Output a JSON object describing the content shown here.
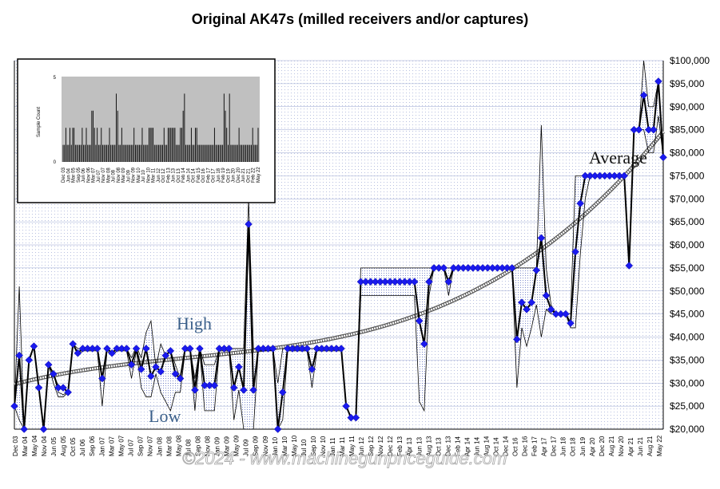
{
  "chart_data": {
    "type": "line",
    "title": "Original AK47s (milled receivers and/or captures)",
    "annotations": [
      "High",
      "Low",
      "Average"
    ],
    "watermark": "©2024 - www.machinegunpriceguide.com",
    "ylim": [
      20000,
      100000
    ],
    "y_ticks": [
      "$20,000",
      "$25,000",
      "$30,000",
      "$35,000",
      "$40,000",
      "$45,000",
      "$50,000",
      "$55,000",
      "$60,000",
      "$65,000",
      "$70,000",
      "$75,000",
      "$80,000",
      "$85,000",
      "$90,000",
      "$95,000",
      "$100,000"
    ],
    "x_ticks": [
      "Dec 03",
      "Mar 04",
      "May 04",
      "Nov 04",
      "Jun 05",
      "Aug 05",
      "Oct 05",
      "Jul 06",
      "Sep 06",
      "Jan 07",
      "Mar 07",
      "May 07",
      "Jul 07",
      "Sep 07",
      "Nov 07",
      "Jan 08",
      "Mar 08",
      "May 08",
      "Jul 08",
      "Sep 08",
      "Nov 08",
      "Jan 09",
      "Mar 09",
      "May 09",
      "Jul 09",
      "Sep 09",
      "Nov 09",
      "Jan 10",
      "Mar 10",
      "May 10",
      "Jul 10",
      "Sep 10",
      "Nov 10",
      "Jan 11",
      "Mar 11",
      "May 11",
      "Jun 12",
      "Sep 12",
      "Nov 12",
      "Dec 12",
      "Feb 13",
      "Apr 13",
      "Jun 13",
      "Aug 13",
      "Oct 13",
      "Dec 13",
      "Feb 14",
      "Apr 14",
      "Jun 14",
      "Aug 14",
      "Oct 14",
      "Dec 14",
      "Oct 16",
      "Dec 16",
      "Feb 17",
      "Apr 17",
      "Dec 17",
      "Jun 18",
      "Oct 18",
      "Jun 19",
      "Apr 20",
      "Dec 20",
      "Aug 21",
      "Nov 20",
      "Apr 21",
      "Jun 21",
      "Aug 21",
      "May 22"
    ],
    "series": [
      {
        "name": "Average",
        "values": [
          25000,
          36000,
          20000,
          35000,
          38000,
          29000,
          20000,
          34000,
          32000,
          29000,
          29000,
          28000,
          38500,
          36500,
          37500,
          37500,
          37500,
          37500,
          31000,
          37500,
          36500,
          37500,
          37500,
          37500,
          34000,
          37500,
          33000,
          37500,
          31500,
          33500,
          32500,
          36000,
          37000,
          32000,
          31000,
          37500,
          37500,
          28500,
          37500,
          29500,
          29500,
          29500,
          37500,
          37500,
          37500,
          29000,
          33500,
          28500,
          64500,
          28500,
          37500,
          37500,
          37500,
          37500,
          20000,
          28000,
          37500,
          37500,
          37500,
          37500,
          37500,
          33000,
          37500,
          37500,
          37500,
          37500,
          37500,
          37500,
          25000,
          22500,
          22500,
          52000,
          52000,
          52000,
          52000,
          52000,
          52000,
          52000,
          52000,
          52000,
          52000,
          52000,
          52000,
          43500,
          38500,
          52000,
          55000,
          55000,
          55000,
          52000,
          55000,
          55000,
          55000,
          55000,
          55000,
          55000,
          55000,
          55000,
          55000,
          55000,
          55000,
          55000,
          55000,
          39500,
          47500,
          46000,
          47500,
          54500,
          61500,
          49000,
          46000,
          45000,
          45000,
          45000,
          43000,
          58500,
          69000,
          75000,
          75000,
          75000,
          75000,
          75000,
          75000,
          75000,
          75000,
          75000,
          55500,
          85000,
          85000,
          92500,
          85000,
          85000,
          95500,
          79000
        ]
      },
      {
        "name": "High",
        "values": [
          25000,
          51000,
          20000,
          35000,
          38000,
          29000,
          20000,
          34000,
          32000,
          28000,
          27500,
          28000,
          38500,
          37500,
          37500,
          37500,
          37500,
          37500,
          31000,
          37500,
          36500,
          37500,
          37500,
          37500,
          35500,
          38000,
          35500,
          41000,
          43500,
          33500,
          38500,
          36000,
          37000,
          34000,
          31000,
          37500,
          37500,
          31000,
          37500,
          34000,
          34000,
          34000,
          37500,
          37500,
          37500,
          37500,
          37500,
          37500,
          70000,
          37500,
          37500,
          37500,
          37500,
          37500,
          30000,
          37500,
          37500,
          37500,
          37500,
          37500,
          37500,
          37500,
          37500,
          37500,
          37500,
          37500,
          37500,
          37500,
          25000,
          22500,
          22500,
          55000,
          55000,
          55000,
          55000,
          55000,
          55000,
          55000,
          55000,
          55000,
          55000,
          55000,
          55000,
          55000,
          55000,
          55000,
          55000,
          55000,
          55000,
          55000,
          55000,
          55000,
          55000,
          55000,
          55000,
          55000,
          55000,
          55000,
          55000,
          55000,
          55000,
          55000,
          55000,
          55000,
          55000,
          55000,
          55000,
          55000,
          86000,
          55000,
          47000,
          45000,
          45000,
          45000,
          45000,
          75000,
          75000,
          75000,
          75000,
          75000,
          75000,
          75000,
          75000,
          75000,
          75000,
          75000,
          55500,
          85000,
          85000,
          100000,
          90000,
          90000,
          95500,
          79000
        ]
      },
      {
        "name": "Low",
        "values": [
          25000,
          22000,
          20000,
          35000,
          38000,
          29000,
          20000,
          34000,
          30000,
          27000,
          27000,
          28000,
          38500,
          36000,
          37000,
          37000,
          37000,
          37000,
          25000,
          37000,
          36000,
          37000,
          37000,
          37000,
          31000,
          37000,
          29000,
          27000,
          27000,
          32000,
          28000,
          26000,
          24000,
          28000,
          28000,
          37000,
          37000,
          24000,
          37000,
          24000,
          24000,
          24000,
          37000,
          37000,
          37000,
          22000,
          28500,
          20000,
          20000,
          20000,
          37000,
          37000,
          37000,
          37000,
          20000,
          22000,
          37000,
          37000,
          37000,
          37000,
          37000,
          29000,
          37000,
          37000,
          37000,
          37000,
          37000,
          37000,
          25000,
          22500,
          22500,
          49000,
          49000,
          49000,
          49000,
          49000,
          49000,
          49000,
          49000,
          49000,
          49000,
          49000,
          49000,
          26000,
          24000,
          49000,
          55000,
          55000,
          55000,
          49000,
          55000,
          55000,
          55000,
          55000,
          55000,
          55000,
          55000,
          55000,
          55000,
          55000,
          55000,
          55000,
          55000,
          29000,
          42000,
          38000,
          42000,
          47000,
          40000,
          46000,
          45000,
          45000,
          45000,
          45000,
          42000,
          42000,
          58000,
          70000,
          75000,
          75000,
          75000,
          75000,
          75000,
          75000,
          75000,
          75000,
          55500,
          85000,
          85000,
          85000,
          80000,
          80000,
          88000,
          79000
        ]
      }
    ],
    "trend": "Average"
  },
  "inset": {
    "y_axis_label": "Sample Count",
    "ylim": [
      0,
      5
    ],
    "y_ticks": [
      "0",
      "5"
    ],
    "values": [
      1,
      1,
      2,
      1,
      1,
      2,
      1,
      2,
      2,
      1,
      1,
      1,
      1,
      1,
      2,
      1,
      1,
      2,
      1,
      1,
      1,
      3,
      3,
      2,
      1,
      2,
      1,
      1,
      2,
      1,
      1,
      1,
      1,
      1,
      2,
      1,
      1,
      1,
      1,
      4,
      3,
      1,
      1,
      2,
      1,
      1,
      1,
      1,
      1,
      1,
      1,
      1,
      2,
      1,
      1,
      1,
      1,
      1,
      2,
      1,
      1,
      1,
      1,
      2,
      2,
      2,
      2,
      1,
      1,
      1,
      1,
      1,
      1,
      1,
      2,
      1,
      1,
      2,
      2,
      2,
      2,
      2,
      2,
      1,
      1,
      1,
      2,
      2,
      3,
      4,
      1,
      1,
      1,
      1,
      2,
      1,
      1,
      2,
      2,
      1,
      1,
      1,
      1,
      1,
      1,
      1,
      1,
      1,
      1,
      1,
      1,
      2,
      1,
      1,
      1,
      1,
      1,
      1,
      4,
      3,
      2,
      1,
      4,
      1,
      1,
      1,
      1,
      1,
      1,
      2,
      1,
      1,
      1,
      1,
      1,
      1,
      1,
      1,
      1,
      2,
      1,
      1,
      1,
      2
    ],
    "x_ticks": [
      "Dec 03",
      "Jun 04",
      "Mar 05",
      "Sep 05",
      "Jun 06",
      "Nov 06",
      "Mar 07",
      "Jul 07",
      "Nov 07",
      "Mar 08",
      "Jul 08",
      "Nov 08",
      "Mar 09",
      "Jul 09",
      "Nov 09",
      "Mar 10",
      "Jul 10",
      "Nov 10",
      "Mar 11",
      "Jun 12",
      "Oct 12",
      "Feb 13",
      "Jun 13",
      "Oct 13",
      "Feb 14",
      "Jun 14",
      "Oct 14",
      "Feb 15",
      "Oct 16",
      "Feb 17",
      "Oct 17",
      "Jun 18",
      "Feb 19",
      "Oct 19",
      "Jun 20",
      "Dec 20",
      "Jun 21",
      "Oct 21",
      "Feb 22",
      "May 22"
    ]
  },
  "colors": {
    "marker": "#1a1aee",
    "line": "#000000",
    "grid": "#9aa6d0",
    "inset_bg": "#c0c0c0",
    "annotation": "#3a5f8a"
  }
}
